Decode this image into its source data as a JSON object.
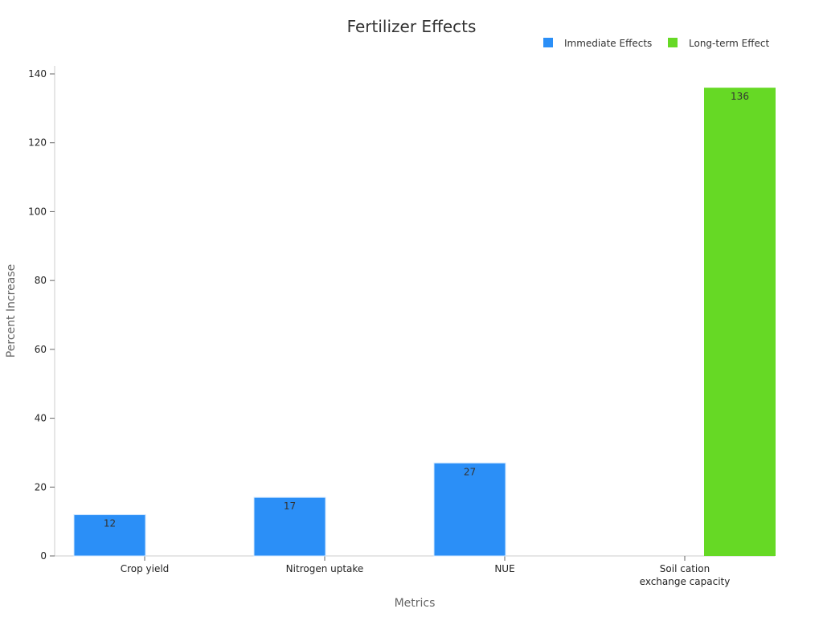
{
  "chart_data": {
    "type": "bar",
    "title": "Fertilizer Effects",
    "xlabel": "Metrics",
    "ylabel": "Percent Increase",
    "categories": [
      [
        "Crop yield"
      ],
      [
        "Nitrogen uptake"
      ],
      [
        "NUE"
      ],
      [
        "Soil cation",
        "exchange capacity"
      ]
    ],
    "series": [
      {
        "name": "Immediate Effects",
        "color": "#2b8ff7",
        "values": [
          12,
          17,
          27,
          null
        ]
      },
      {
        "name": "Long-term Effect",
        "color": "#66d925",
        "values": [
          null,
          null,
          null,
          136
        ]
      }
    ],
    "ylim": [
      0,
      140
    ],
    "yticks": [
      0,
      20,
      40,
      60,
      80,
      100,
      120,
      140
    ],
    "grid": false,
    "legend": "top-right",
    "data_labels": true
  }
}
